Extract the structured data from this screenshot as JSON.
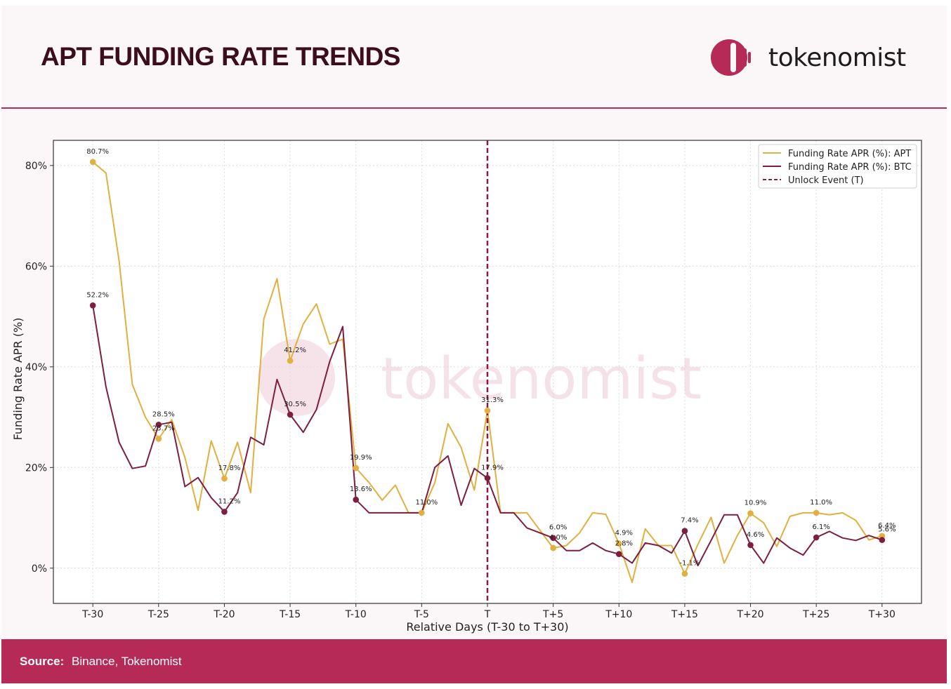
{
  "header": {
    "title": "APT FUNDING RATE TRENDS",
    "brand": "tokenomist",
    "watermark": "tokenomist"
  },
  "footer": {
    "source_label": "Source:",
    "source_text": "Binance, Tokenomist"
  },
  "colors": {
    "apt": "#e0b040",
    "btc": "#7d1e3e",
    "unlock": "#8b1a3e",
    "accent": "#b62a57"
  },
  "chart_data": {
    "type": "line",
    "xlabel": "Relative Days (T-30 to T+30)",
    "ylabel": "Funding Rate APR (%)",
    "xlim": [
      -33,
      33
    ],
    "ylim": [
      -7,
      85
    ],
    "x_ticks": [
      {
        "x": -30,
        "label": "T-30"
      },
      {
        "x": -25,
        "label": "T-25"
      },
      {
        "x": -20,
        "label": "T-20"
      },
      {
        "x": -15,
        "label": "T-15"
      },
      {
        "x": -10,
        "label": "T-10"
      },
      {
        "x": -5,
        "label": "T-5"
      },
      {
        "x": 0,
        "label": "T"
      },
      {
        "x": 5,
        "label": "T+5"
      },
      {
        "x": 10,
        "label": "T+10"
      },
      {
        "x": 15,
        "label": "T+15"
      },
      {
        "x": 20,
        "label": "T+20"
      },
      {
        "x": 25,
        "label": "T+25"
      },
      {
        "x": 30,
        "label": "T+30"
      }
    ],
    "y_ticks": [
      {
        "y": 0,
        "label": "0%"
      },
      {
        "y": 20,
        "label": "20%"
      },
      {
        "y": 40,
        "label": "40%"
      },
      {
        "y": 60,
        "label": "60%"
      },
      {
        "y": 80,
        "label": "80%"
      }
    ],
    "grid": true,
    "legend_position": "top-right",
    "vline": {
      "x": 0,
      "name": "Unlock Event (T)"
    },
    "series": [
      {
        "name": "Funding Rate APR (%): APT",
        "color": "#e0b040",
        "x": [
          -30,
          -29,
          -28,
          -27,
          -26,
          -25,
          -24,
          -23,
          -22,
          -21,
          -20,
          -19,
          -18,
          -17,
          -16,
          -15,
          -14,
          -13,
          -12,
          -11,
          -10,
          -9,
          -8,
          -7,
          -6,
          -5,
          -4,
          -3,
          -2,
          -1,
          0,
          1,
          2,
          3,
          4,
          5,
          6,
          7,
          8,
          9,
          10,
          11,
          12,
          13,
          14,
          15,
          16,
          17,
          18,
          19,
          20,
          21,
          22,
          23,
          24,
          25,
          26,
          27,
          28,
          29,
          30
        ],
        "values": [
          80.7,
          78.5,
          61.0,
          36.5,
          30.0,
          25.7,
          29.5,
          22.0,
          11.5,
          25.3,
          17.8,
          25.0,
          15.0,
          49.5,
          57.5,
          41.2,
          48.5,
          52.5,
          44.5,
          45.5,
          19.9,
          17.0,
          13.5,
          16.5,
          11.0,
          11.0,
          17.0,
          28.7,
          24.0,
          15.5,
          31.3,
          11.0,
          11.0,
          11.0,
          7.5,
          4.0,
          4.5,
          7.0,
          11.0,
          10.7,
          4.9,
          -2.8,
          7.8,
          4.5,
          4.5,
          -1.1,
          4.7,
          10.1,
          1.0,
          6.5,
          10.9,
          9.0,
          4.3,
          10.3,
          11.0,
          11.0,
          10.6,
          11.0,
          9.5,
          5.6,
          6.4
        ]
      },
      {
        "name": "Funding Rate APR (%): BTC",
        "color": "#7d1e3e",
        "x": [
          -30,
          -29,
          -28,
          -27,
          -26,
          -25,
          -24,
          -23,
          -22,
          -21,
          -20,
          -19,
          -18,
          -17,
          -16,
          -15,
          -14,
          -13,
          -12,
          -11,
          -10,
          -9,
          -8,
          -7,
          -6,
          -5,
          -4,
          -3,
          -2,
          -1,
          0,
          1,
          2,
          3,
          4,
          5,
          6,
          7,
          8,
          9,
          10,
          11,
          12,
          13,
          14,
          15,
          16,
          17,
          18,
          19,
          20,
          21,
          22,
          23,
          24,
          25,
          26,
          27,
          28,
          29,
          30
        ],
        "values": [
          52.2,
          36.0,
          25.0,
          19.8,
          20.3,
          28.5,
          29.0,
          16.2,
          18.0,
          14.0,
          11.2,
          15.0,
          26.0,
          24.5,
          37.5,
          30.5,
          27.0,
          31.5,
          41.0,
          48.0,
          13.6,
          11.0,
          11.0,
          11.0,
          11.0,
          11.0,
          20.0,
          22.3,
          12.5,
          19.8,
          17.9,
          11.0,
          11.0,
          8.0,
          7.0,
          6.0,
          3.5,
          3.5,
          5.0,
          3.5,
          2.8,
          1.0,
          5.0,
          4.5,
          3.0,
          7.4,
          0.5,
          5.5,
          10.6,
          10.6,
          4.6,
          1.0,
          6.0,
          4.0,
          2.6,
          6.1,
          7.3,
          6.0,
          5.5,
          6.5,
          5.6
        ]
      }
    ],
    "annotations": [
      {
        "series": 0,
        "x": -30,
        "y": 80.7,
        "text": "80.7%"
      },
      {
        "series": 0,
        "x": -25,
        "y": 25.7,
        "text": "25.7%"
      },
      {
        "series": 0,
        "x": -20,
        "y": 17.8,
        "text": "17.8%"
      },
      {
        "series": 0,
        "x": -15,
        "y": 41.2,
        "text": "41.2%"
      },
      {
        "series": 0,
        "x": -10,
        "y": 19.9,
        "text": "19.9%"
      },
      {
        "series": 0,
        "x": -5,
        "y": 11.0,
        "text": "11.0%"
      },
      {
        "series": 0,
        "x": 0,
        "y": 31.3,
        "text": "31.3%"
      },
      {
        "series": 0,
        "x": 5,
        "y": 4.0,
        "text": "4.0%"
      },
      {
        "series": 0,
        "x": 10,
        "y": 4.9,
        "text": "4.9%"
      },
      {
        "series": 0,
        "x": 15,
        "y": -1.1,
        "text": "-1.1%"
      },
      {
        "series": 0,
        "x": 20,
        "y": 10.9,
        "text": "10.9%"
      },
      {
        "series": 0,
        "x": 25,
        "y": 11.0,
        "text": "11.0%"
      },
      {
        "series": 0,
        "x": 30,
        "y": 6.4,
        "text": "6.4%"
      },
      {
        "series": 1,
        "x": -30,
        "y": 52.2,
        "text": "52.2%"
      },
      {
        "series": 1,
        "x": -25,
        "y": 28.5,
        "text": "28.5%"
      },
      {
        "series": 1,
        "x": -20,
        "y": 11.2,
        "text": "11.2%"
      },
      {
        "series": 1,
        "x": -15,
        "y": 30.5,
        "text": "30.5%"
      },
      {
        "series": 1,
        "x": -10,
        "y": 13.6,
        "text": "13.6%"
      },
      {
        "series": 1,
        "x": 0,
        "y": 17.9,
        "text": "17.9%"
      },
      {
        "series": 1,
        "x": 5,
        "y": 6.0,
        "text": "6.0%"
      },
      {
        "series": 1,
        "x": 10,
        "y": 2.8,
        "text": "2.8%"
      },
      {
        "series": 1,
        "x": 15,
        "y": 7.4,
        "text": "7.4%"
      },
      {
        "series": 1,
        "x": 20,
        "y": 4.6,
        "text": "4.6%"
      },
      {
        "series": 1,
        "x": 25,
        "y": 6.1,
        "text": "6.1%"
      },
      {
        "series": 1,
        "x": 30,
        "y": 5.6,
        "text": "5.6%"
      }
    ]
  }
}
